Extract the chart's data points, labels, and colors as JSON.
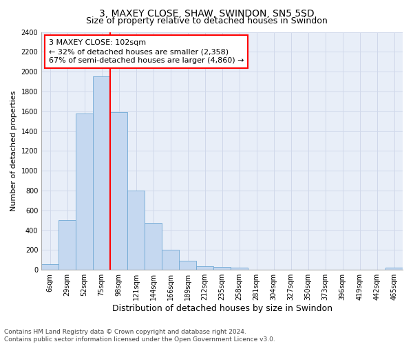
{
  "title": "3, MAXEY CLOSE, SHAW, SWINDON, SN5 5SD",
  "subtitle": "Size of property relative to detached houses in Swindon",
  "xlabel": "Distribution of detached houses by size in Swindon",
  "ylabel": "Number of detached properties",
  "categories": [
    "6sqm",
    "29sqm",
    "52sqm",
    "75sqm",
    "98sqm",
    "121sqm",
    "144sqm",
    "166sqm",
    "189sqm",
    "212sqm",
    "235sqm",
    "258sqm",
    "281sqm",
    "304sqm",
    "327sqm",
    "350sqm",
    "373sqm",
    "396sqm",
    "419sqm",
    "442sqm",
    "465sqm"
  ],
  "values": [
    60,
    500,
    1580,
    1950,
    1590,
    800,
    475,
    200,
    90,
    35,
    30,
    20,
    0,
    0,
    0,
    0,
    0,
    0,
    0,
    0,
    20
  ],
  "bar_color": "#c5d8f0",
  "bar_edge_color": "#6fa8d4",
  "grid_color": "#d0d8ea",
  "bg_color": "#e8eef8",
  "vline_x_index": 4,
  "vline_color": "red",
  "annotation_text": "3 MAXEY CLOSE: 102sqm\n← 32% of detached houses are smaller (2,358)\n67% of semi-detached houses are larger (4,860) →",
  "annotation_box_color": "white",
  "annotation_border_color": "red",
  "ylim": [
    0,
    2400
  ],
  "yticks": [
    0,
    200,
    400,
    600,
    800,
    1000,
    1200,
    1400,
    1600,
    1800,
    2000,
    2200,
    2400
  ],
  "footnote": "Contains HM Land Registry data © Crown copyright and database right 2024.\nContains public sector information licensed under the Open Government Licence v3.0.",
  "title_fontsize": 10,
  "subtitle_fontsize": 9,
  "xlabel_fontsize": 9,
  "ylabel_fontsize": 8,
  "tick_fontsize": 7,
  "annotation_fontsize": 8,
  "footnote_fontsize": 6.5
}
